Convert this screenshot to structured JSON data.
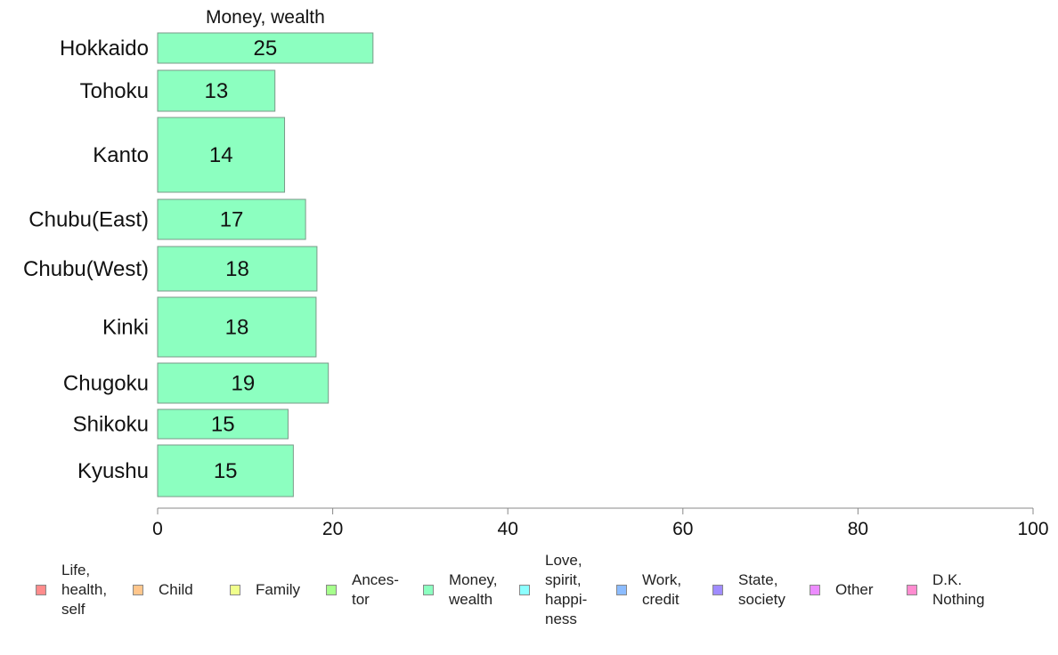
{
  "chart_data": {
    "type": "bar",
    "orientation": "horizontal",
    "title": "Money, wealth",
    "categories": [
      "Hokkaido",
      "Tohoku",
      "Kanto",
      "Chubu(East)",
      "Chubu(West)",
      "Kinki",
      "Chugoku",
      "Shikoku",
      "Kyushu"
    ],
    "values": [
      25,
      13,
      14,
      17,
      18,
      18,
      19,
      15,
      15
    ],
    "bar_lengths": [
      24.6,
      13.4,
      14.5,
      16.9,
      18.2,
      18.1,
      19.5,
      14.9,
      15.5
    ],
    "xlim": [
      0,
      100
    ],
    "xticks": [
      "0",
      "20",
      "40",
      "60",
      "80",
      "100"
    ],
    "xlabel": "",
    "ylabel": "",
    "bar_color": "#8cffc0",
    "grid": false,
    "legend_position": "bottom"
  },
  "legend": [
    {
      "label": "Life,\nhealth,\nself",
      "color": "#ff8c8c"
    },
    {
      "label": "Child",
      "color": "#ffc68c"
    },
    {
      "label": "Family",
      "color": "#f0ff8c"
    },
    {
      "label": "Ances-\ntor",
      "color": "#a6ff8c"
    },
    {
      "label": "Money,\nwealth",
      "color": "#8cffc0"
    },
    {
      "label": "Love,\nspirit,\nhappi-\nness",
      "color": "#8cffff"
    },
    {
      "label": "Work,\ncredit",
      "color": "#8cbcff"
    },
    {
      "label": "State,\nsociety",
      "color": "#a08cff"
    },
    {
      "label": "Other",
      "color": "#ec8cff"
    },
    {
      "label": "D.K.\nNothing",
      "color": "#ff8cd0"
    }
  ]
}
